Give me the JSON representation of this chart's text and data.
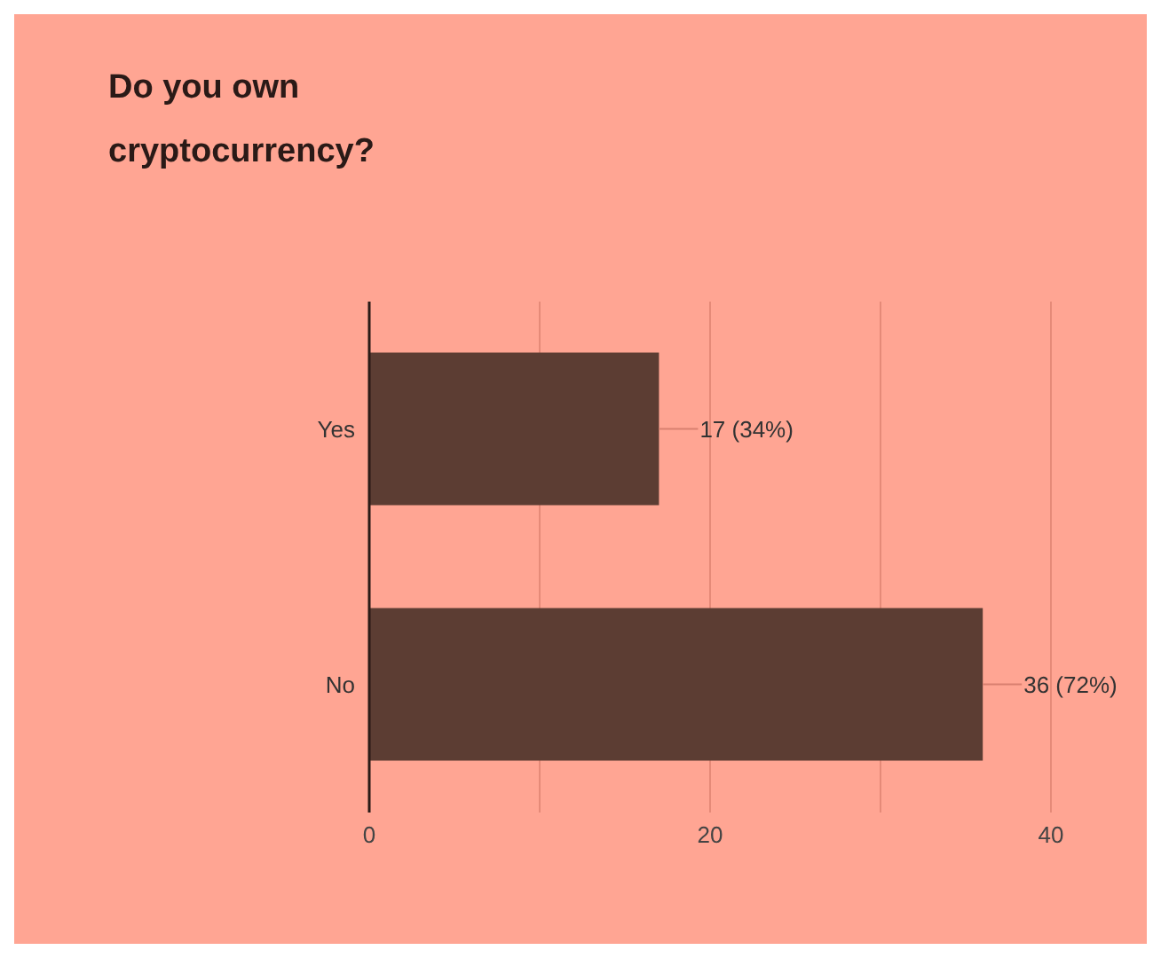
{
  "chart_data": {
    "type": "bar",
    "orientation": "horizontal",
    "title": "Do you own cryptocurrency?",
    "categories": [
      "Yes",
      "No"
    ],
    "series": [
      {
        "color": "#5c3d33",
        "values": [
          17,
          36
        ],
        "value_labels": [
          "17 (34%)",
          "36 (72%)"
        ]
      }
    ],
    "xlim": [
      0,
      40
    ],
    "xticks": [
      0,
      {
        "value": 10,
        "label": null
      },
      20,
      {
        "value": 30,
        "label": null
      },
      40
    ],
    "grid": "x"
  }
}
